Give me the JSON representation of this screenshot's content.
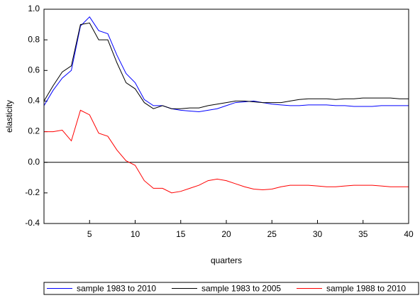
{
  "chart_data": {
    "type": "line",
    "x_label": "quarters",
    "y_label": "elasticity",
    "x": [
      0,
      1,
      2,
      3,
      4,
      5,
      6,
      7,
      8,
      9,
      10,
      11,
      12,
      13,
      14,
      15,
      16,
      17,
      18,
      19,
      20,
      21,
      22,
      23,
      24,
      25,
      26,
      27,
      28,
      29,
      30,
      31,
      32,
      33,
      34,
      35,
      36,
      37,
      38,
      39,
      40
    ],
    "series": [
      {
        "name": "sample 1983 to 2010",
        "color": "#0000ff",
        "values": [
          0.37,
          0.47,
          0.55,
          0.6,
          0.89,
          0.95,
          0.86,
          0.84,
          0.7,
          0.58,
          0.52,
          0.41,
          0.37,
          0.37,
          0.35,
          0.34,
          0.335,
          0.33,
          0.34,
          0.35,
          0.37,
          0.39,
          0.395,
          0.4,
          0.39,
          0.38,
          0.375,
          0.37,
          0.37,
          0.375,
          0.375,
          0.375,
          0.37,
          0.37,
          0.365,
          0.365,
          0.365,
          0.37,
          0.37,
          0.37,
          0.37
        ]
      },
      {
        "name": "sample 1983 to 2005",
        "color": "#000000",
        "values": [
          0.4,
          0.5,
          0.59,
          0.63,
          0.9,
          0.91,
          0.8,
          0.8,
          0.65,
          0.52,
          0.48,
          0.39,
          0.35,
          0.37,
          0.35,
          0.35,
          0.355,
          0.355,
          0.37,
          0.38,
          0.39,
          0.4,
          0.4,
          0.395,
          0.39,
          0.39,
          0.39,
          0.4,
          0.41,
          0.415,
          0.415,
          0.415,
          0.41,
          0.415,
          0.415,
          0.42,
          0.42,
          0.42,
          0.42,
          0.415,
          0.415
        ]
      },
      {
        "name": "sample 1988 to 2010",
        "color": "#ff0000",
        "values": [
          0.2,
          0.2,
          0.21,
          0.14,
          0.34,
          0.31,
          0.19,
          0.17,
          0.08,
          0.01,
          -0.02,
          -0.12,
          -0.17,
          -0.17,
          -0.2,
          -0.19,
          -0.17,
          -0.15,
          -0.12,
          -0.11,
          -0.12,
          -0.14,
          -0.16,
          -0.175,
          -0.18,
          -0.175,
          -0.16,
          -0.15,
          -0.15,
          -0.15,
          -0.155,
          -0.16,
          -0.16,
          -0.155,
          -0.15,
          -0.15,
          -0.15,
          -0.155,
          -0.16,
          -0.16,
          -0.16
        ]
      }
    ],
    "xlim": [
      0,
      40
    ],
    "xticks": [
      5,
      10,
      15,
      20,
      25,
      30,
      35,
      40
    ],
    "ylim": [
      -0.4,
      1.0
    ],
    "yticks": [
      {
        "value": 1.0,
        "label": "1.0"
      },
      0.8,
      0.6,
      0.4,
      0.2,
      {
        "value": 0,
        "label": "0.0"
      },
      -0.2,
      -0.4
    ],
    "zero_line": true,
    "legend": "bottom"
  }
}
